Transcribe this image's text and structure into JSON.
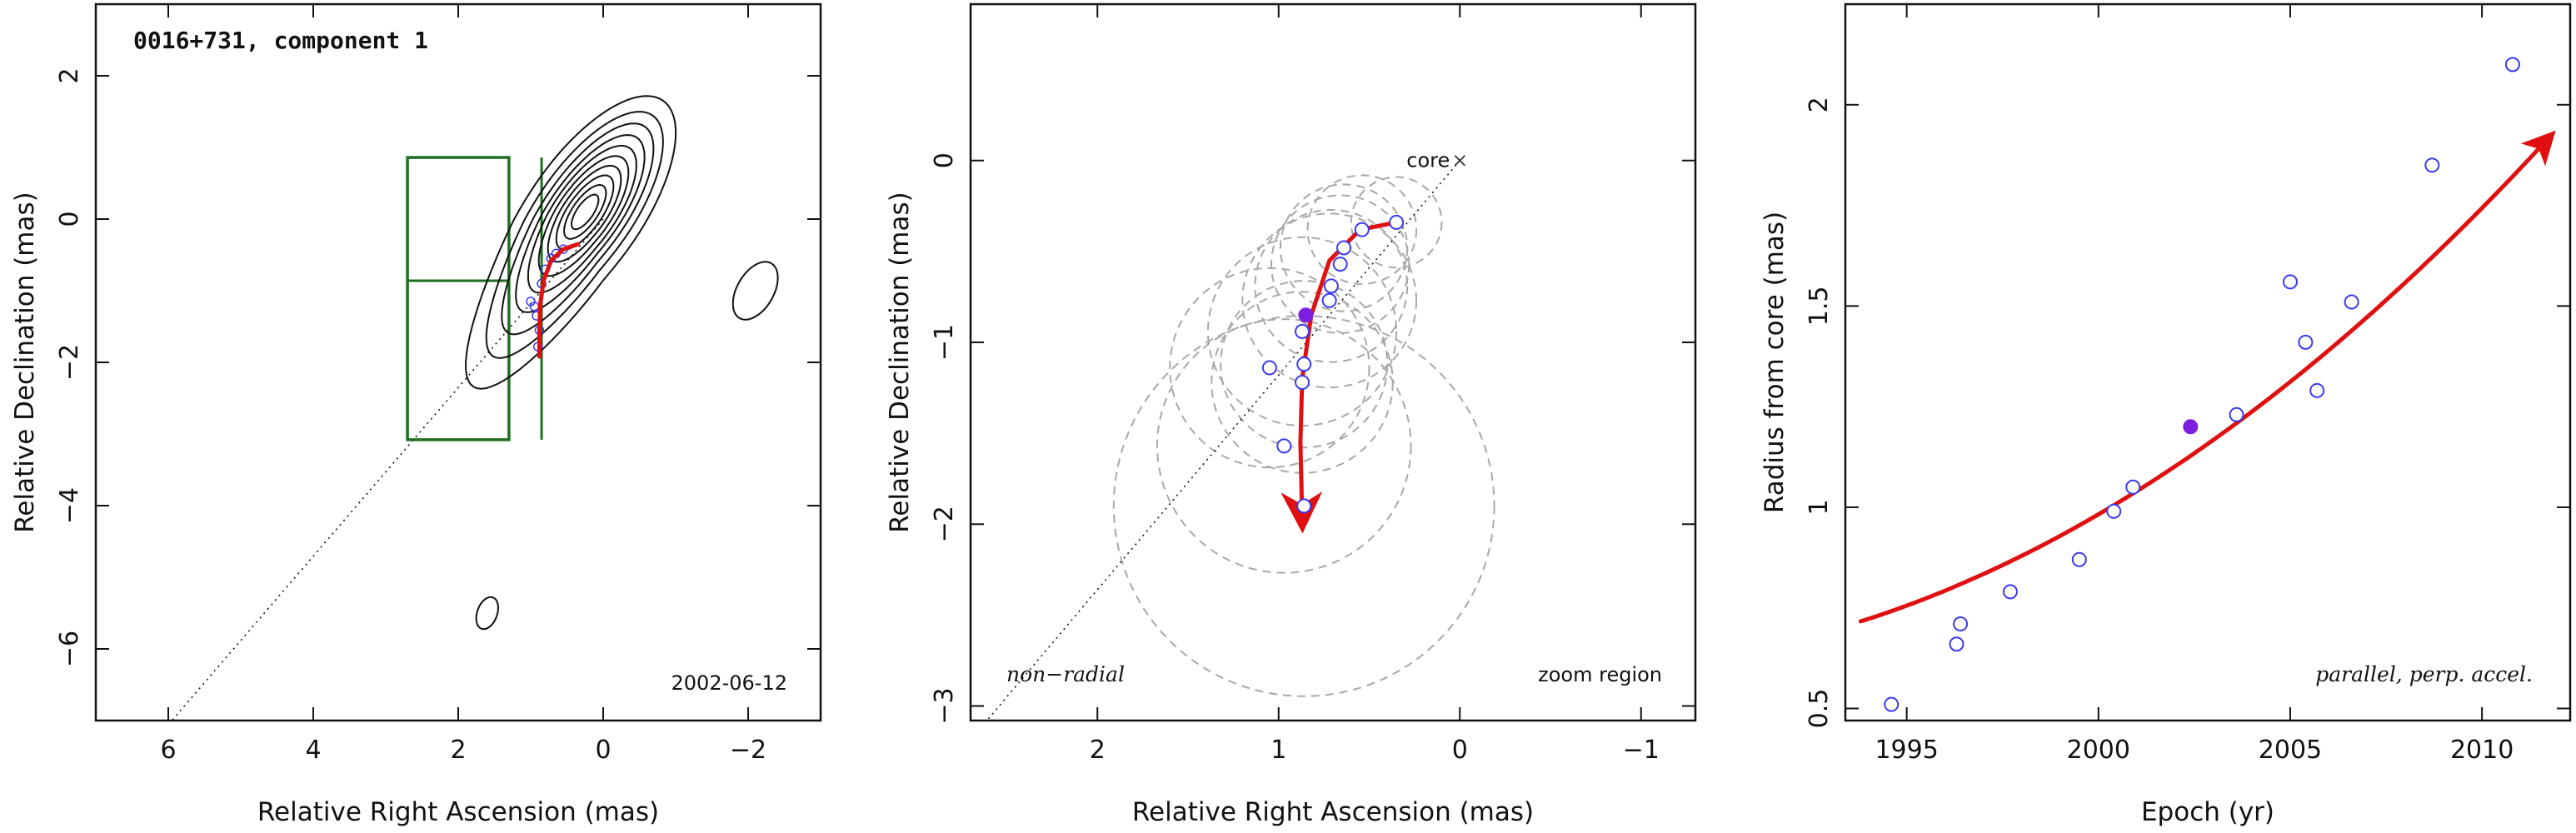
{
  "chart_data": [
    {
      "type": "contour",
      "title": "0016+731, component 1",
      "date_label": "2002-06-12",
      "xlabel": "Relative Right Ascension (mas)",
      "ylabel": "Relative Declination (mas)",
      "xlim": [
        7,
        -3
      ],
      "ylim": [
        -7,
        3
      ],
      "xticks": [
        6,
        4,
        2,
        0,
        -2
      ],
      "yticks": [
        2,
        0,
        -2,
        -4,
        -6
      ],
      "grid": false,
      "radial_line": {
        "from": [
          0,
          0
        ],
        "to": [
          5.95,
          -7.0
        ]
      },
      "zoom_box": {
        "x": [
          1.3,
          2.7
        ],
        "y": [
          -3.08,
          0.86
        ],
        "mid_x": 0.85,
        "mid_y": -0.86
      },
      "contour_center": [
        0.25,
        0.1
      ],
      "track_points": [
        [
          0.55,
          -0.42
        ],
        [
          0.65,
          -0.48
        ],
        [
          0.72,
          -0.55
        ],
        [
          0.8,
          -0.7
        ],
        [
          0.85,
          -0.9
        ],
        [
          1.0,
          -1.15
        ],
        [
          0.95,
          -1.22
        ],
        [
          0.92,
          -1.35
        ],
        [
          0.88,
          -1.55
        ],
        [
          0.9,
          -1.78
        ]
      ],
      "fit_path": [
        [
          0.35,
          -0.35
        ],
        [
          0.55,
          -0.42
        ],
        [
          0.72,
          -0.58
        ],
        [
          0.82,
          -0.85
        ],
        [
          0.87,
          -1.2
        ],
        [
          0.88,
          -1.55
        ],
        [
          0.88,
          -1.92
        ]
      ]
    },
    {
      "type": "scatter",
      "title": "",
      "xlabel": "Relative Right Ascension (mas)",
      "ylabel": "Relative Declination (mas)",
      "xlim": [
        2.7,
        -1.3
      ],
      "ylim": [
        -3.08,
        0.86
      ],
      "xticks": [
        2,
        1,
        0,
        -1
      ],
      "yticks": [
        0,
        -1,
        -2,
        -3
      ],
      "grid": false,
      "core_label": "core",
      "core_position": [
        0,
        0
      ],
      "annotations": [
        "non−radial",
        "zoom region"
      ],
      "points": [
        {
          "x": 0.35,
          "y": -0.34
        },
        {
          "x": 0.54,
          "y": -0.38
        },
        {
          "x": 0.64,
          "y": -0.48
        },
        {
          "x": 0.66,
          "y": -0.57
        },
        {
          "x": 0.71,
          "y": -0.69
        },
        {
          "x": 0.72,
          "y": -0.77
        },
        {
          "x": 0.87,
          "y": -0.94
        },
        {
          "x": 0.86,
          "y": -1.12
        },
        {
          "x": 1.05,
          "y": -1.14
        },
        {
          "x": 0.87,
          "y": -1.22
        },
        {
          "x": 0.97,
          "y": -1.57
        },
        {
          "x": 0.86,
          "y": -1.9
        }
      ],
      "highlight_point": {
        "x": 0.85,
        "y": -0.85
      },
      "error_circles": [
        {
          "x": 0.35,
          "y": -0.34,
          "r": 0.25
        },
        {
          "x": 0.54,
          "y": -0.38,
          "r": 0.3
        },
        {
          "x": 0.64,
          "y": -0.48,
          "r": 0.35
        },
        {
          "x": 0.66,
          "y": -0.57,
          "r": 0.38
        },
        {
          "x": 0.71,
          "y": -0.69,
          "r": 0.42
        },
        {
          "x": 0.72,
          "y": -0.77,
          "r": 0.48
        },
        {
          "x": 0.87,
          "y": -0.94,
          "r": 0.52
        },
        {
          "x": 0.86,
          "y": -1.12,
          "r": 0.46
        },
        {
          "x": 1.05,
          "y": -1.14,
          "r": 0.55
        },
        {
          "x": 0.87,
          "y": -1.22,
          "r": 0.5
        },
        {
          "x": 0.97,
          "y": -1.57,
          "r": 0.7
        },
        {
          "x": 0.86,
          "y": -1.9,
          "r": 1.05
        }
      ],
      "radial_line": {
        "from": [
          0,
          0
        ],
        "to": [
          2.61,
          -3.08
        ]
      },
      "fit_path": [
        [
          0.35,
          -0.34
        ],
        [
          0.55,
          -0.38
        ],
        [
          0.72,
          -0.55
        ],
        [
          0.82,
          -0.85
        ],
        [
          0.87,
          -1.2
        ],
        [
          0.88,
          -1.55
        ],
        [
          0.87,
          -1.96
        ]
      ]
    },
    {
      "type": "scatter",
      "title": "",
      "xlabel": "Epoch (yr)",
      "ylabel": "Radius from core (mas)",
      "xlim": [
        1993.4,
        2012.3
      ],
      "ylim": [
        0.47,
        2.25
      ],
      "xticks": [
        1995,
        2000,
        2005,
        2010
      ],
      "yticks": [
        0.5,
        1,
        1.5,
        2
      ],
      "ytick_labels": [
        "0.5",
        "1",
        "1.5",
        "2"
      ],
      "grid": false,
      "annotation": "parallel, perp. accel.",
      "points": [
        {
          "x": 1994.6,
          "y": 0.51
        },
        {
          "x": 1996.3,
          "y": 0.66
        },
        {
          "x": 1996.4,
          "y": 0.71
        },
        {
          "x": 1997.7,
          "y": 0.79
        },
        {
          "x": 1999.5,
          "y": 0.87
        },
        {
          "x": 2000.4,
          "y": 0.99
        },
        {
          "x": 2000.9,
          "y": 1.05
        },
        {
          "x": 2003.6,
          "y": 1.23
        },
        {
          "x": 2005.0,
          "y": 1.56
        },
        {
          "x": 2005.4,
          "y": 1.41
        },
        {
          "x": 2005.7,
          "y": 1.29
        },
        {
          "x": 2006.6,
          "y": 1.51
        },
        {
          "x": 2008.7,
          "y": 1.85
        },
        {
          "x": 2010.8,
          "y": 2.1
        }
      ],
      "highlight_point": {
        "x": 2002.4,
        "y": 1.2
      },
      "fit_curve": {
        "x_start": 1993.8,
        "x_end": 2011.7,
        "a": 1.04,
        "b": 0.0597,
        "c": 0.00205,
        "x0": 2001
      }
    }
  ],
  "colors": {
    "axes": "#111111",
    "contour": "#111111",
    "zoom_box": "#1f6e1f",
    "points": "#3a3af0",
    "highlight": "#7b1fe0",
    "fit": "#e01010",
    "error_circles": "#a8a8a8",
    "radial_line": "#111111"
  }
}
